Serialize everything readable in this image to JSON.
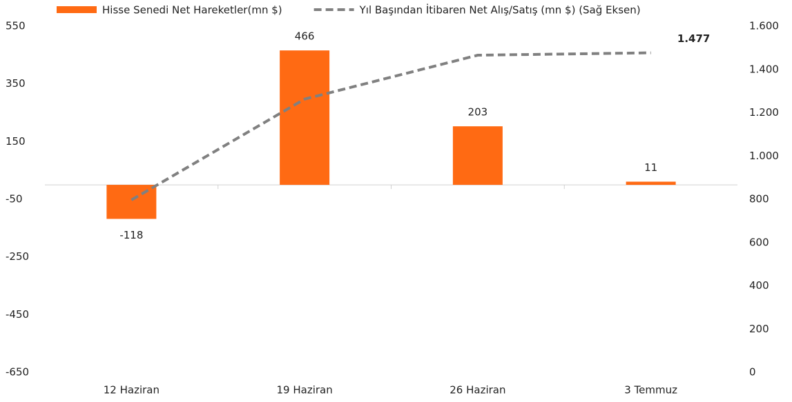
{
  "chart_data": {
    "type": "bar",
    "categories": [
      "12 Haziran",
      "19 Haziran",
      "26 Haziran",
      "3 Temmuz"
    ],
    "series": [
      {
        "name": "Hisse Senedi Net Hareketler(mn $)",
        "type": "bar",
        "color": "#ff6a13",
        "values": [
          -118,
          466,
          203,
          11
        ]
      },
      {
        "name": "Yıl Başından İtibaren Net Alış/Satış (mn $) (Sağ Eksen)",
        "type": "line",
        "axis": "y2",
        "color": "#808080",
        "dashed": true,
        "values": [
          797,
          1263,
          1466,
          1477
        ],
        "value_labels": [
          null,
          null,
          null,
          "1.477"
        ]
      }
    ],
    "ylim": [
      -650,
      550
    ],
    "yticks": [
      -650,
      -450,
      -250,
      -50,
      150,
      350,
      550
    ],
    "y2lim": [
      0,
      1600
    ],
    "y2ticks": [
      0,
      200,
      400,
      600,
      800,
      {
        "value": 1000,
        "label": "1.000"
      },
      {
        "value": 1200,
        "label": "1.200"
      },
      {
        "value": 1400,
        "label": "1.400"
      },
      {
        "value": 1600,
        "label": "1.600"
      }
    ],
    "legend": "top"
  }
}
